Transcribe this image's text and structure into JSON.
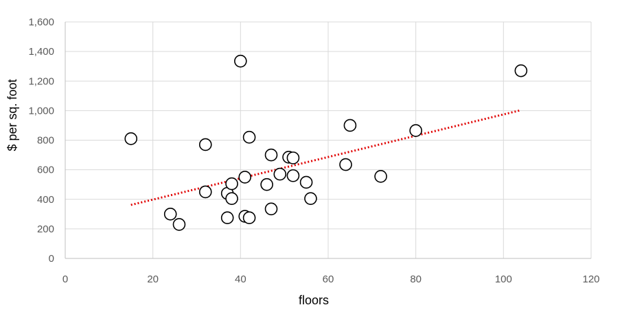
{
  "chart_data": {
    "type": "scatter",
    "title": "",
    "xlabel": "floors",
    "ylabel": "$ per sq. foot",
    "xlim": [
      0,
      120
    ],
    "ylim": [
      0,
      1600
    ],
    "x_ticks": [
      0,
      20,
      40,
      60,
      80,
      100,
      120
    ],
    "y_ticks": [
      0,
      200,
      400,
      600,
      800,
      1000,
      1200,
      1400,
      1600
    ],
    "x_tick_labels": [
      "0",
      "20",
      "40",
      "60",
      "80",
      "100",
      "120"
    ],
    "y_tick_labels": [
      "0",
      "200",
      "400",
      "600",
      "800",
      "1,000",
      "1,200",
      "1,400",
      "1,600"
    ],
    "grid": true,
    "marker": "open-circle",
    "points": [
      {
        "x": 15,
        "y": 810
      },
      {
        "x": 24,
        "y": 300
      },
      {
        "x": 26,
        "y": 230
      },
      {
        "x": 32,
        "y": 770
      },
      {
        "x": 32,
        "y": 450
      },
      {
        "x": 37,
        "y": 440
      },
      {
        "x": 37,
        "y": 275
      },
      {
        "x": 38,
        "y": 505
      },
      {
        "x": 38,
        "y": 405
      },
      {
        "x": 40,
        "y": 1335
      },
      {
        "x": 41,
        "y": 550
      },
      {
        "x": 41,
        "y": 285
      },
      {
        "x": 42,
        "y": 820
      },
      {
        "x": 42,
        "y": 275
      },
      {
        "x": 46,
        "y": 500
      },
      {
        "x": 47,
        "y": 700
      },
      {
        "x": 47,
        "y": 335
      },
      {
        "x": 49,
        "y": 570
      },
      {
        "x": 51,
        "y": 685
      },
      {
        "x": 52,
        "y": 680
      },
      {
        "x": 52,
        "y": 560
      },
      {
        "x": 55,
        "y": 515
      },
      {
        "x": 56,
        "y": 405
      },
      {
        "x": 64,
        "y": 635
      },
      {
        "x": 65,
        "y": 900
      },
      {
        "x": 72,
        "y": 555
      },
      {
        "x": 80,
        "y": 865
      },
      {
        "x": 104,
        "y": 1270
      }
    ],
    "trendline": {
      "type": "linear",
      "style": "dotted",
      "color": "#e00000",
      "from": {
        "x": 15,
        "y": 362
      },
      "to": {
        "x": 104,
        "y": 1003
      }
    }
  }
}
